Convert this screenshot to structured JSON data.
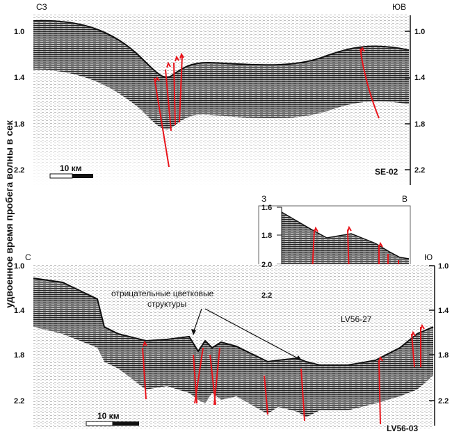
{
  "y_axis_label": "удвоенное время пробега волны в сек",
  "top_profile": {
    "dir_left": "СЗ",
    "dir_right": "ЮВ",
    "ticks": [
      "1.0",
      "1.4",
      "1.8",
      "2.2"
    ],
    "name": "SE-02",
    "scale": "10 км"
  },
  "inset_profile": {
    "dir_left": "З",
    "dir_right": "В",
    "ticks": [
      "1.6",
      "1.8",
      "2.0",
      "2.2"
    ],
    "name": "LV56-27"
  },
  "bottom_profile": {
    "dir_left": "С",
    "dir_right": "Ю",
    "ticks": [
      "1.0",
      "1.4",
      "1.8",
      "2.2"
    ],
    "name": "LV56-03",
    "scale": "10 км",
    "annotation_line1": "отрицательные цветковые",
    "annotation_line2": "структуры"
  },
  "colors": {
    "faults": "#e8141b",
    "seismic": "#1a1a1a"
  }
}
